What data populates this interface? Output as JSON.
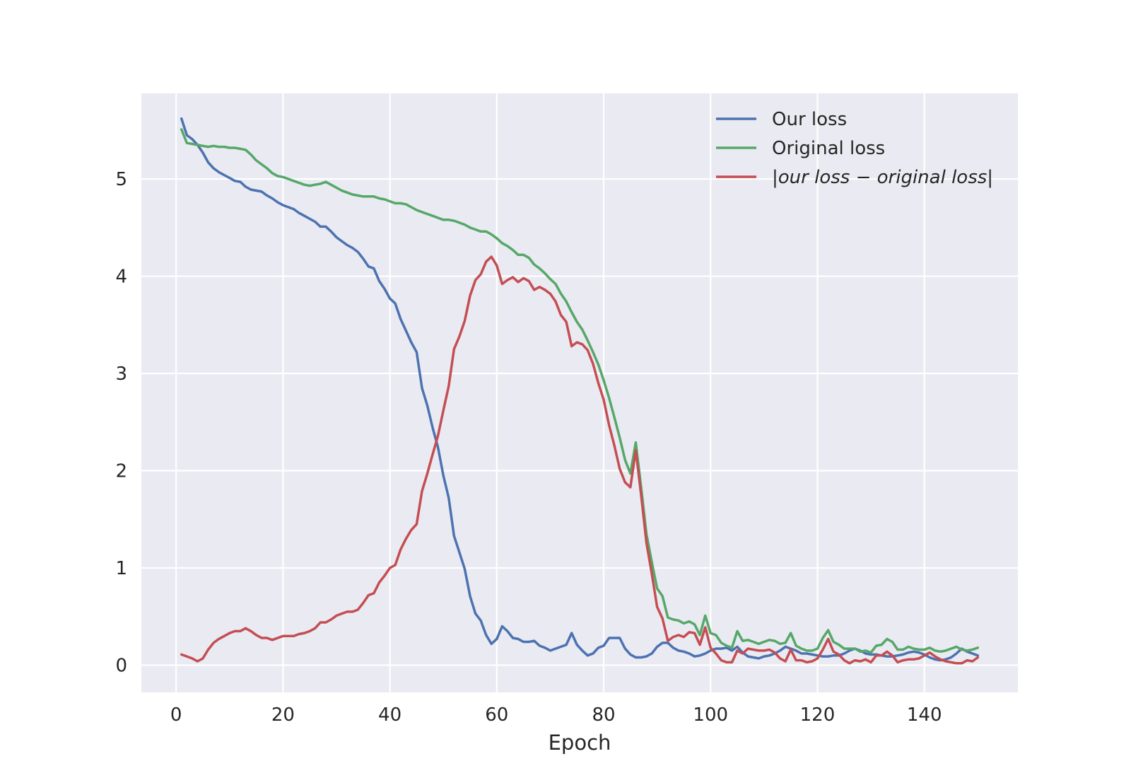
{
  "chart_data": {
    "type": "line",
    "title": "",
    "xlabel": "Epoch",
    "ylabel": "",
    "xlim": [
      -6.5,
      157.5
    ],
    "ylim": [
      -0.28,
      5.88
    ],
    "xticks": [
      0,
      20,
      40,
      60,
      80,
      100,
      120,
      140
    ],
    "yticks": [
      0,
      1,
      2,
      3,
      4,
      5
    ],
    "grid": true,
    "legend_position": "top-right",
    "colors": {
      "background": "#eaeaf2",
      "grid": "#ffffff"
    },
    "x": [
      1,
      2,
      3,
      4,
      5,
      6,
      7,
      8,
      9,
      10,
      11,
      12,
      13,
      14,
      15,
      16,
      17,
      18,
      19,
      20,
      21,
      22,
      23,
      24,
      25,
      26,
      27,
      28,
      29,
      30,
      31,
      32,
      33,
      34,
      35,
      36,
      37,
      38,
      39,
      40,
      41,
      42,
      43,
      44,
      45,
      46,
      47,
      48,
      49,
      50,
      51,
      52,
      53,
      54,
      55,
      56,
      57,
      58,
      59,
      60,
      61,
      62,
      63,
      64,
      65,
      66,
      67,
      68,
      69,
      70,
      71,
      72,
      73,
      74,
      75,
      76,
      77,
      78,
      79,
      80,
      81,
      82,
      83,
      84,
      85,
      86,
      87,
      88,
      89,
      90,
      91,
      92,
      93,
      94,
      95,
      96,
      97,
      98,
      99,
      100,
      101,
      102,
      103,
      104,
      105,
      106,
      107,
      108,
      109,
      110,
      111,
      112,
      113,
      114,
      115,
      116,
      117,
      118,
      119,
      120,
      121,
      122,
      123,
      124,
      125,
      126,
      127,
      128,
      129,
      130,
      131,
      132,
      133,
      134,
      135,
      136,
      137,
      138,
      139,
      140,
      141,
      142,
      143,
      144,
      145,
      146,
      147,
      148,
      149,
      150
    ],
    "series": [
      {
        "name": "Our loss",
        "color": "#4c72b0",
        "values": [
          5.62,
          5.45,
          5.41,
          5.35,
          5.27,
          5.17,
          5.11,
          5.07,
          5.04,
          5.01,
          4.98,
          4.97,
          4.92,
          4.89,
          4.88,
          4.87,
          4.83,
          4.8,
          4.76,
          4.73,
          4.71,
          4.69,
          4.65,
          4.62,
          4.59,
          4.56,
          4.51,
          4.51,
          4.46,
          4.4,
          4.36,
          4.32,
          4.29,
          4.25,
          4.18,
          4.1,
          4.08,
          3.95,
          3.87,
          3.77,
          3.72,
          3.56,
          3.44,
          3.32,
          3.22,
          2.85,
          2.67,
          2.44,
          2.24,
          1.95,
          1.72,
          1.33,
          1.16,
          0.99,
          0.71,
          0.53,
          0.46,
          0.31,
          0.22,
          0.27,
          0.4,
          0.35,
          0.28,
          0.27,
          0.24,
          0.24,
          0.25,
          0.2,
          0.18,
          0.15,
          0.17,
          0.19,
          0.21,
          0.33,
          0.21,
          0.15,
          0.1,
          0.12,
          0.18,
          0.2,
          0.28,
          0.28,
          0.28,
          0.17,
          0.11,
          0.08,
          0.08,
          0.09,
          0.12,
          0.19,
          0.23,
          0.23,
          0.18,
          0.15,
          0.14,
          0.12,
          0.09,
          0.1,
          0.12,
          0.15,
          0.17,
          0.17,
          0.18,
          0.15,
          0.19,
          0.13,
          0.09,
          0.08,
          0.07,
          0.09,
          0.1,
          0.12,
          0.15,
          0.19,
          0.17,
          0.15,
          0.12,
          0.12,
          0.11,
          0.1,
          0.09,
          0.09,
          0.1,
          0.1,
          0.12,
          0.15,
          0.17,
          0.15,
          0.12,
          0.11,
          0.11,
          0.1,
          0.09,
          0.09,
          0.1,
          0.11,
          0.13,
          0.14,
          0.13,
          0.11,
          0.08,
          0.06,
          0.05,
          0.06,
          0.08,
          0.12,
          0.17,
          0.14,
          0.12,
          0.1
        ]
      },
      {
        "name": "Original loss",
        "color": "#55a868",
        "values": [
          5.51,
          5.37,
          5.36,
          5.35,
          5.34,
          5.33,
          5.34,
          5.33,
          5.33,
          5.32,
          5.32,
          5.31,
          5.3,
          5.25,
          5.19,
          5.15,
          5.11,
          5.06,
          5.03,
          5.02,
          5.0,
          4.98,
          4.96,
          4.94,
          4.93,
          4.94,
          4.95,
          4.97,
          4.94,
          4.91,
          4.88,
          4.86,
          4.84,
          4.83,
          4.82,
          4.82,
          4.82,
          4.8,
          4.79,
          4.77,
          4.75,
          4.75,
          4.74,
          4.71,
          4.68,
          4.66,
          4.64,
          4.62,
          4.6,
          4.58,
          4.58,
          4.57,
          4.55,
          4.53,
          4.5,
          4.48,
          4.46,
          4.46,
          4.43,
          4.39,
          4.34,
          4.31,
          4.27,
          4.22,
          4.22,
          4.19,
          4.12,
          4.08,
          4.03,
          3.97,
          3.92,
          3.82,
          3.74,
          3.63,
          3.53,
          3.45,
          3.34,
          3.22,
          3.09,
          2.93,
          2.75,
          2.55,
          2.34,
          2.11,
          1.97,
          2.29,
          1.83,
          1.35,
          1.06,
          0.79,
          0.71,
          0.49,
          0.47,
          0.46,
          0.43,
          0.45,
          0.42,
          0.31,
          0.51,
          0.33,
          0.31,
          0.23,
          0.2,
          0.18,
          0.35,
          0.25,
          0.26,
          0.24,
          0.22,
          0.24,
          0.26,
          0.25,
          0.22,
          0.23,
          0.33,
          0.2,
          0.17,
          0.15,
          0.15,
          0.17,
          0.28,
          0.36,
          0.24,
          0.21,
          0.17,
          0.17,
          0.17,
          0.14,
          0.15,
          0.13,
          0.2,
          0.21,
          0.27,
          0.24,
          0.16,
          0.16,
          0.19,
          0.17,
          0.16,
          0.16,
          0.18,
          0.15,
          0.14,
          0.15,
          0.17,
          0.19,
          0.16,
          0.15,
          0.16,
          0.18
        ]
      },
      {
        "name": "|our loss − original loss|",
        "color": "#c44e52",
        "values": [
          0.11,
          0.09,
          0.07,
          0.04,
          0.07,
          0.16,
          0.23,
          0.27,
          0.3,
          0.33,
          0.35,
          0.35,
          0.38,
          0.35,
          0.31,
          0.28,
          0.28,
          0.26,
          0.28,
          0.3,
          0.3,
          0.3,
          0.32,
          0.33,
          0.35,
          0.38,
          0.44,
          0.44,
          0.47,
          0.51,
          0.53,
          0.55,
          0.55,
          0.57,
          0.64,
          0.72,
          0.74,
          0.85,
          0.92,
          1.0,
          1.03,
          1.19,
          1.3,
          1.39,
          1.45,
          1.79,
          1.97,
          2.17,
          2.36,
          2.62,
          2.87,
          3.25,
          3.38,
          3.54,
          3.8,
          3.96,
          4.02,
          4.15,
          4.2,
          4.11,
          3.92,
          3.96,
          3.99,
          3.94,
          3.98,
          3.95,
          3.86,
          3.89,
          3.86,
          3.82,
          3.74,
          3.6,
          3.53,
          3.28,
          3.32,
          3.3,
          3.24,
          3.1,
          2.9,
          2.73,
          2.47,
          2.26,
          2.02,
          1.88,
          1.83,
          2.21,
          1.75,
          1.26,
          0.94,
          0.6,
          0.48,
          0.25,
          0.29,
          0.31,
          0.29,
          0.34,
          0.33,
          0.21,
          0.39,
          0.18,
          0.12,
          0.05,
          0.03,
          0.03,
          0.15,
          0.12,
          0.17,
          0.16,
          0.15,
          0.15,
          0.16,
          0.13,
          0.07,
          0.04,
          0.16,
          0.05,
          0.05,
          0.03,
          0.04,
          0.07,
          0.16,
          0.27,
          0.14,
          0.11,
          0.05,
          0.02,
          0.05,
          0.04,
          0.06,
          0.03,
          0.1,
          0.1,
          0.14,
          0.1,
          0.03,
          0.05,
          0.06,
          0.06,
          0.07,
          0.1,
          0.13,
          0.09,
          0.06,
          0.04,
          0.03,
          0.02,
          0.02,
          0.05,
          0.04,
          0.08
        ]
      }
    ]
  }
}
